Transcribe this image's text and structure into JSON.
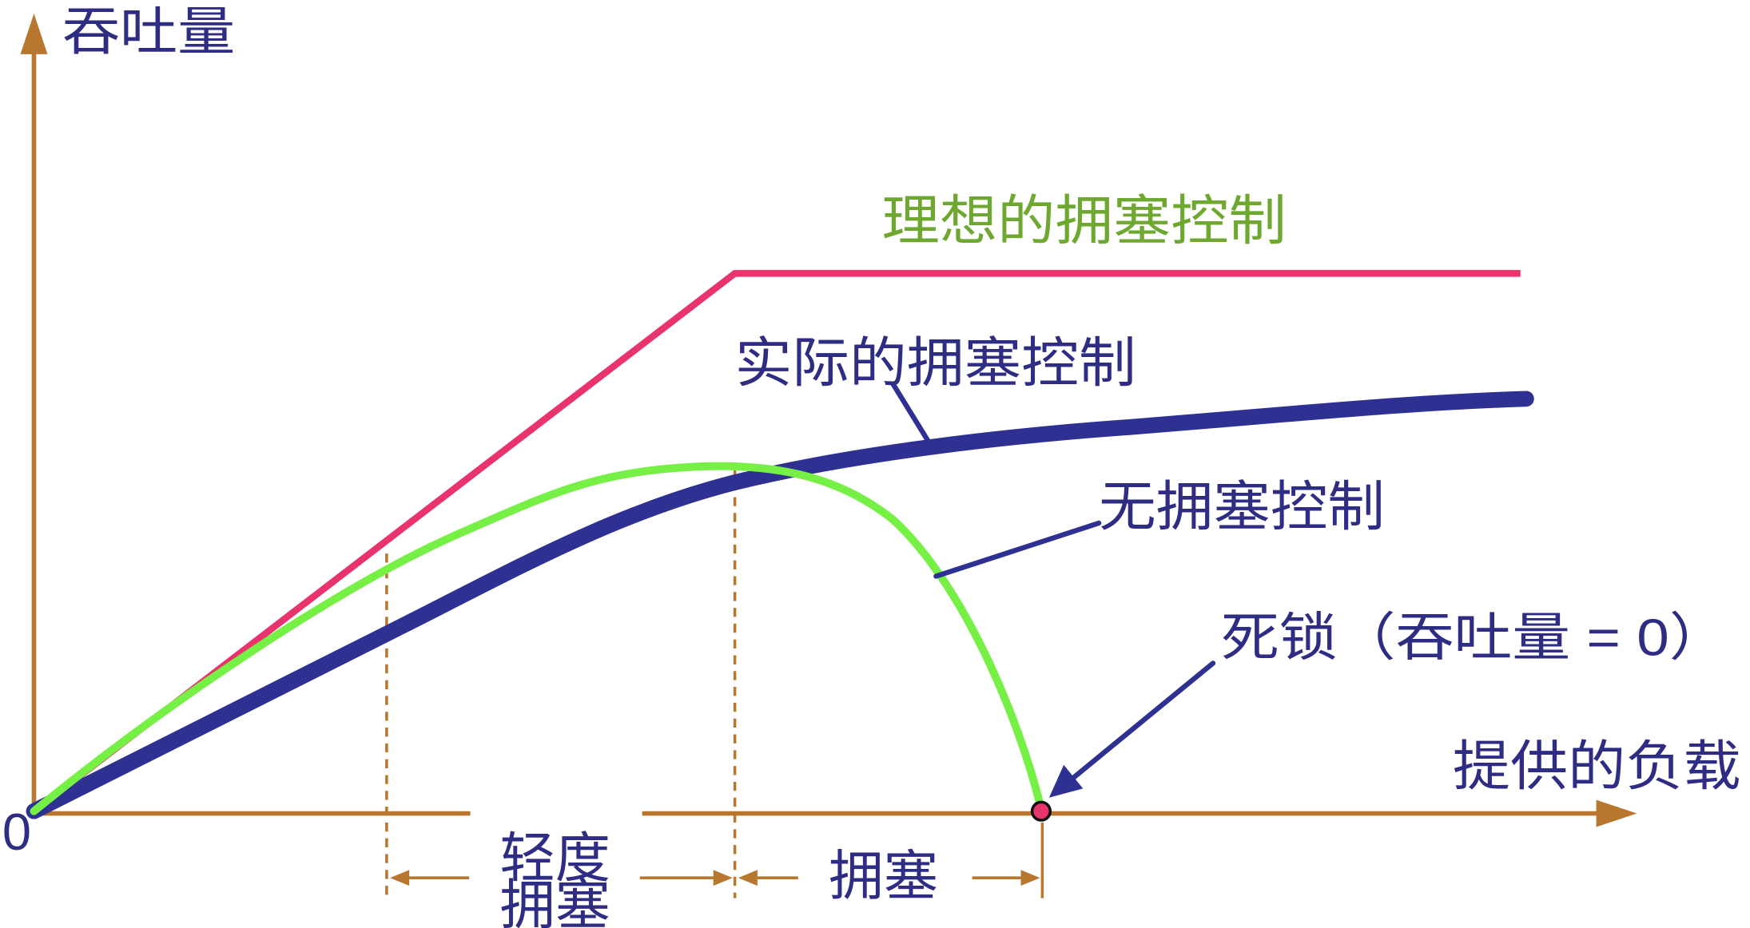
{
  "y_axis": {
    "label": "吞吐量"
  },
  "x_axis": {
    "label": "提供的负载",
    "origin": "0"
  },
  "curves": {
    "ideal": {
      "label": "理想的拥塞控制",
      "color": "#E8336D"
    },
    "actual": {
      "label": "实际的拥塞控制",
      "color": "#2E3192"
    },
    "none": {
      "label": "无拥塞控制",
      "color": "#77F046"
    }
  },
  "deadlock": {
    "label": "死锁（吞吐量 = 0）",
    "marker_color": "#E8336D"
  },
  "regions": {
    "light": {
      "line1": "轻度",
      "line2": "拥塞"
    },
    "congested": {
      "label": "拥塞"
    }
  },
  "colors": {
    "axis": "#B8772F",
    "text": "#2E2D83",
    "ideal_label": "#6FA830"
  }
}
